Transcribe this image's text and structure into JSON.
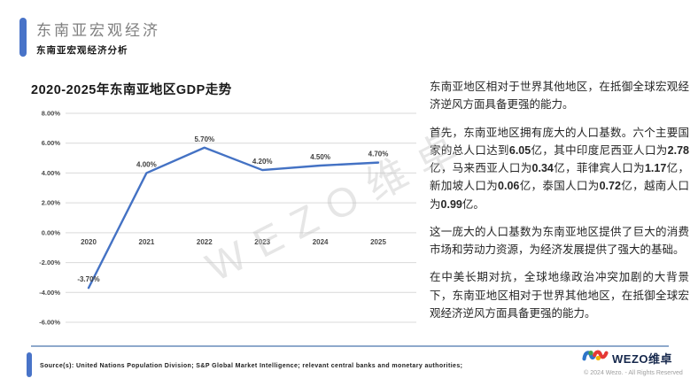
{
  "header": {
    "title": "东南亚宏观经济",
    "subtitle": "东南亚宏观经济分析"
  },
  "chart_data": {
    "type": "line",
    "title": "2020-2025年东南亚地区GDP走势",
    "categories": [
      "2020",
      "2021",
      "2022",
      "2023",
      "2024",
      "2025"
    ],
    "values": [
      -3.7,
      4.0,
      5.7,
      4.2,
      4.5,
      4.7
    ],
    "point_labels": [
      "-3.70%",
      "4.00%",
      "5.70%",
      "4.20%",
      "4.50%",
      "4.70%"
    ],
    "ylim": [
      -6,
      8
    ],
    "ytick_step": 2,
    "ytick_labels": [
      "8.00%",
      "6.00%",
      "4.00%",
      "2.00%",
      "0.00%",
      "-2.00%",
      "-4.00%",
      "-6.00%"
    ],
    "xlabel": "",
    "ylabel": "",
    "grid": true,
    "legend": "none",
    "line_color": "#4472C4",
    "grid_color": "#d9d9d9",
    "label_color": "#404040"
  },
  "panel": {
    "paragraphs": [
      "东南亚地区相对于世界其他地区，在抵御全球宏观经济逆风方面具备更强的能力。",
      "首先，东南亚地区拥有庞大的人口基数。六个主要国家的总人口达到6.05亿，其中印度尼西亚人口为2.78亿，马来西亚人口为0.34亿，菲律宾人口为1.17亿，新加坡人口为0.06亿，泰国人口为0.72亿，越南人口为0.99亿。",
      "这一庞大的人口基数为东南亚地区提供了巨大的消费市场和劳动力资源，为经济发展提供了强大的基础。",
      "在中美长期对抗，全球地缘政治冲突加剧的大背景下，东南亚地区相对于世界其他地区，在抵御全球宏观经济逆风方面具备更强的能力。"
    ]
  },
  "watermark": "WEZO维卓",
  "footer": {
    "source": "Source(s): United Nations Population Division; S&P Global Market Intelligence; relevant central banks and monetary authorities;",
    "logo_text": "WEZO维卓",
    "copyright": "© 2024 Wezo. - All Rights Reserved"
  },
  "colors": {
    "accent": "#4873C8",
    "chart_line": "#4472C4",
    "divider": "#8EA9CC",
    "logo_blue": "#2E75C9",
    "logo_green": "#43A047",
    "logo_red": "#E53935",
    "logo_yellow": "#F4B400"
  }
}
